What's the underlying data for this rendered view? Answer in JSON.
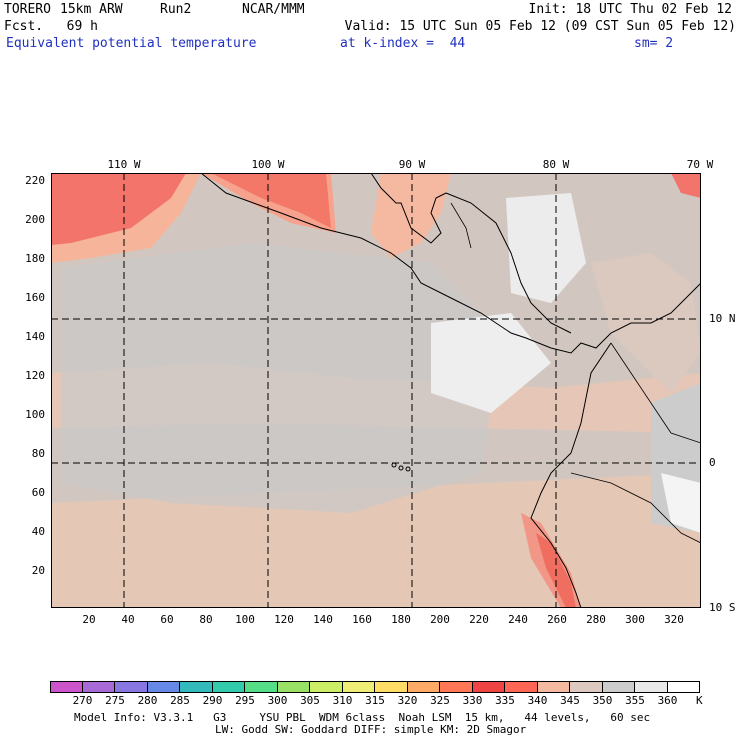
{
  "header": {
    "model": "TORERO",
    "resolution": "15km ARW",
    "run": "Run2",
    "org": "NCAR/MMM",
    "init": "Init: 18 UTC Thu 02 Feb 12",
    "fcst": "Fcst.   69 h",
    "valid": "Valid: 15 UTC Sun 05 Feb 12 (09 CST Sun 05 Feb 12)",
    "field": "Equivalent potential temperature",
    "level": "at k-index =  44",
    "smooth": "sm= 2"
  },
  "map": {
    "lon_top_labels": [
      "110 W",
      "100 W",
      "90 W",
      "80 W",
      "70 W"
    ],
    "lat_right_labels": [
      "10 N",
      "0",
      "10 S"
    ],
    "x_ticks": [
      "20",
      "40",
      "60",
      "80",
      "100",
      "120",
      "140",
      "160",
      "180",
      "200",
      "220",
      "240",
      "260",
      "280",
      "300",
      "320"
    ],
    "y_ticks": [
      "220",
      "200",
      "180",
      "160",
      "140",
      "120",
      "100",
      "80",
      "60",
      "40",
      "20"
    ]
  },
  "colorbar": {
    "labels": [
      "270",
      "275",
      "280",
      "285",
      "290",
      "295",
      "300",
      "305",
      "310",
      "315",
      "320",
      "325",
      "330",
      "335",
      "340",
      "345",
      "350",
      "355",
      "360"
    ],
    "unit": "K",
    "colors": [
      "#cc55cc",
      "#a76ad6",
      "#8877e0",
      "#6688e6",
      "#33bbbb",
      "#33ccaa",
      "#55dd88",
      "#99e066",
      "#ccee66",
      "#eeee77",
      "#ffdd66",
      "#ffaa66",
      "#ff7755",
      "#ee4444",
      "#ff6655",
      "#f4b9a0",
      "#dccac0",
      "#cccccc",
      "#e8e8e8",
      "#ffffff"
    ]
  },
  "footer": {
    "line1": "Model Info: V3.3.1   G3     YSU PBL  WDM 6class  Noah LSM  15 km,   44 levels,   60 sec",
    "line2": "LW: Godd SW: Goddard DIFF: simple KM: 2D Smagor"
  }
}
